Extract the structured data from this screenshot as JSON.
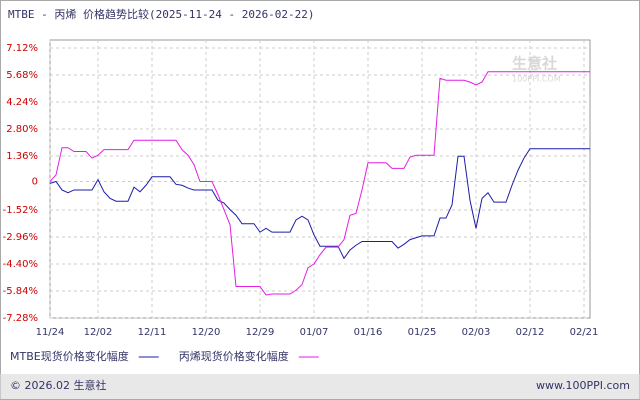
{
  "chart_data": {
    "type": "line",
    "title": "MTBE - 丙烯 价格趋势比较(2025-11-24 - 2026-02-22)",
    "watermark": "生意社",
    "watermark_sub": "100PPI.COM",
    "footer_left": "© 2026.02 生意社",
    "footer_right": "www.100PPI.com",
    "categories": [
      "11/24",
      null,
      null,
      null,
      null,
      null,
      null,
      null,
      "12/02",
      null,
      null,
      null,
      null,
      null,
      null,
      null,
      null,
      "12/11",
      null,
      null,
      null,
      null,
      null,
      null,
      null,
      null,
      "12/20",
      null,
      null,
      null,
      null,
      null,
      null,
      null,
      null,
      "12/29",
      null,
      null,
      null,
      null,
      null,
      null,
      null,
      null,
      "01/07",
      null,
      null,
      null,
      null,
      null,
      null,
      null,
      null,
      "01/16",
      null,
      null,
      null,
      null,
      null,
      null,
      null,
      null,
      "01/25",
      null,
      null,
      null,
      null,
      null,
      null,
      null,
      null,
      "02/03",
      null,
      null,
      null,
      null,
      null,
      null,
      null,
      null,
      "02/12",
      null,
      null,
      null,
      null,
      null,
      null,
      null,
      null,
      "02/21",
      null
    ],
    "series": [
      {
        "name": "MTBE现货价格变化幅度",
        "color": "#1c1ca8",
        "values": [
          -0.1,
          0,
          -0.45,
          -0.6,
          -0.45,
          -0.45,
          -0.45,
          -0.45,
          0.1,
          -0.55,
          -0.9,
          -1.05,
          -1.05,
          -1.05,
          -0.3,
          -0.55,
          -0.2,
          0.25,
          0.25,
          0.25,
          0.25,
          -0.15,
          -0.2,
          -0.35,
          -0.45,
          -0.45,
          -0.45,
          -0.45,
          -1,
          -1.15,
          -1.5,
          -1.8,
          -2.25,
          -2.25,
          -2.25,
          -2.7,
          -2.5,
          -2.7,
          -2.7,
          -2.7,
          -2.7,
          -2.05,
          -1.85,
          -2.05,
          -2.85,
          -3.45,
          -3.45,
          -3.45,
          -3.45,
          -4.1,
          -3.65,
          -3.4,
          -3.2,
          -3.2,
          -3.2,
          -3.2,
          -3.2,
          -3.2,
          -3.55,
          -3.35,
          -3.1,
          -3,
          -2.9,
          -2.9,
          -2.9,
          -1.95,
          -1.95,
          -1.25,
          1.35,
          1.35,
          -1,
          -2.5,
          -0.9,
          -0.6,
          -1.1,
          -1.1,
          -1.1,
          -0.2,
          0.6,
          1.25,
          1.75,
          1.75,
          1.75,
          1.75,
          1.75,
          1.75,
          1.75,
          1.75,
          1.75,
          1.75,
          1.75
        ]
      },
      {
        "name": "丙烯现货价格变化幅度",
        "color": "#e41ee4",
        "values": [
          0,
          0.35,
          1.8,
          1.8,
          1.6,
          1.6,
          1.6,
          1.25,
          1.4,
          1.7,
          1.7,
          1.7,
          1.7,
          1.7,
          2.2,
          2.2,
          2.2,
          2.2,
          2.2,
          2.2,
          2.2,
          2.2,
          1.7,
          1.4,
          0.9,
          0,
          0,
          0,
          -0.7,
          -1.5,
          -2.3,
          -5.6,
          -5.6,
          -5.6,
          -5.6,
          -5.6,
          -6.05,
          -6,
          -6,
          -6,
          -6,
          -5.8,
          -5.5,
          -4.6,
          -4.4,
          -3.9,
          -3.5,
          -3.5,
          -3.5,
          -3.1,
          -1.8,
          -1.7,
          -0.45,
          1,
          1,
          1,
          1,
          0.7,
          0.7,
          0.7,
          1.3,
          1.4,
          1.4,
          1.4,
          1.4,
          5.5,
          5.4,
          5.4,
          5.4,
          5.4,
          5.3,
          5.15,
          5.3,
          5.85,
          5.85,
          5.85,
          5.85,
          5.85,
          5.85,
          5.85,
          5.85,
          5.85,
          5.85,
          5.85,
          5.85,
          5.85,
          5.85,
          5.85,
          5.85,
          5.85,
          5.85
        ]
      }
    ],
    "ylim": [
      -7.28,
      7.12
    ],
    "yticks": [
      {
        "value": 7.12,
        "label": "7.12%"
      },
      {
        "value": 5.68,
        "label": "5.68%"
      },
      {
        "value": 4.24,
        "label": "4.24%"
      },
      {
        "value": 2.8,
        "label": "2.80%"
      },
      {
        "value": 1.36,
        "label": "1.36%"
      },
      0,
      {
        "value": -1.52,
        "label": "-1.52%"
      },
      {
        "value": -2.96,
        "label": "-2.96%"
      },
      {
        "value": -4.4,
        "label": "-4.40%"
      },
      {
        "value": -5.84,
        "label": "-5.84%"
      },
      {
        "value": -7.28,
        "label": "-7.28%"
      }
    ],
    "grid": true
  }
}
